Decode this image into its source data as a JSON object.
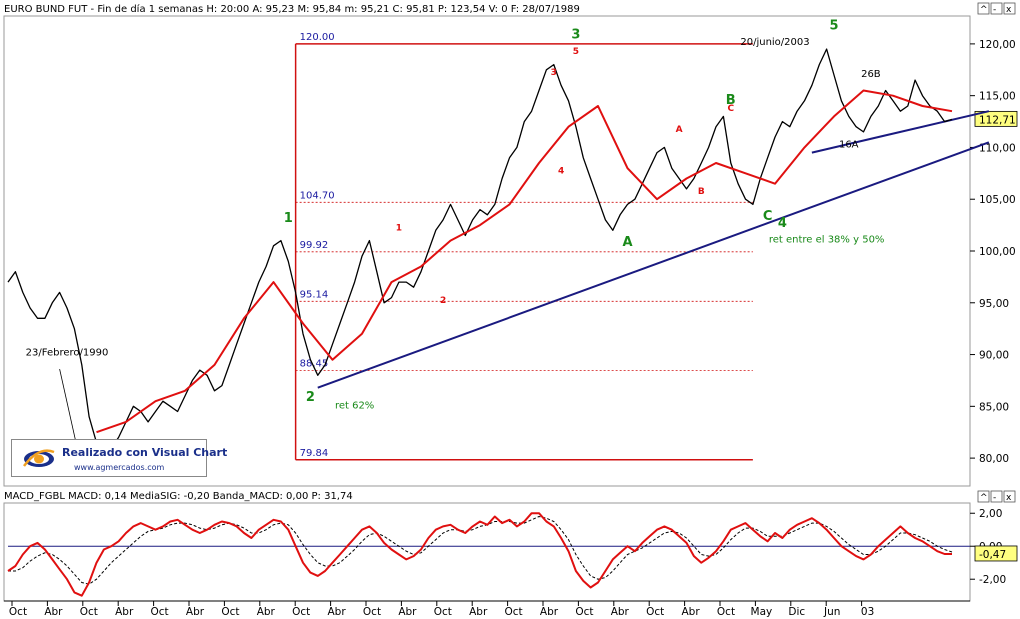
{
  "header": {
    "main": "EURO BUND FUT - Fin de día 1 semanas  H: 20:00  A: 95,23  M: 95,84  m: 95,21  C: 95,81  P: 123,54  V: 0  F: 28/07/1989",
    "macd": "MACD_FGBL  MACD: 0,14  MediaSIG: -0,20  Banda_MACD: 0,00  P: 31,74"
  },
  "window_buttons": {
    "main": [
      "^",
      "-",
      "x"
    ],
    "macd": [
      "^",
      "-",
      "x"
    ]
  },
  "logo": {
    "title": "Realizado con Visual Chart",
    "url": "www.agmercados.com"
  },
  "chart_data": [
    {
      "type": "line",
      "series": [
        {
          "name": "",
          "x": [
            0,
            1,
            2,
            3,
            4,
            5,
            6,
            7,
            8,
            9,
            10,
            11,
            12,
            13,
            14,
            15,
            16,
            17,
            18,
            19,
            20,
            21,
            22,
            23,
            24,
            25,
            26,
            27,
            28,
            29,
            30,
            31,
            32,
            33,
            34,
            35,
            36,
            37,
            38,
            39,
            40,
            41,
            42,
            43,
            44,
            45,
            46,
            47,
            48,
            49,
            50,
            51,
            52,
            53,
            54,
            55,
            56,
            57,
            58,
            59,
            60,
            61,
            62,
            63,
            64,
            65,
            66,
            67,
            68,
            69,
            70,
            71,
            72,
            73,
            74,
            75,
            76,
            77,
            78,
            79,
            80,
            81,
            82,
            83,
            84,
            85,
            86,
            87,
            88,
            89,
            90,
            91,
            92,
            93,
            94,
            95,
            96,
            97,
            98,
            99,
            100,
            101,
            102,
            103,
            104,
            105,
            106,
            107,
            108,
            109,
            110,
            111,
            112,
            113,
            114,
            115,
            116,
            117,
            118,
            119,
            120,
            121,
            122,
            123,
            124,
            125,
            126,
            127,
            128
          ],
          "values": [
            97,
            98,
            96,
            94.5,
            93.5,
            93.5,
            95,
            96,
            94.5,
            92.5,
            89,
            84,
            81.5,
            80.5,
            81,
            82,
            83.5,
            85,
            84.5,
            83.5,
            84.5,
            85.5,
            85,
            84.5,
            86,
            87.5,
            88.5,
            88,
            86.5,
            87,
            89,
            91,
            93,
            95,
            97,
            98.5,
            100.5,
            101,
            99,
            96,
            92,
            89.5,
            88,
            89,
            91,
            93,
            95,
            97,
            99.5,
            101,
            98,
            95,
            95.5,
            97,
            97,
            96.5,
            98,
            100,
            102,
            103,
            104.5,
            103,
            101.5,
            103,
            104,
            103.5,
            104.5,
            107,
            109,
            110,
            112.5,
            113.5,
            115.5,
            117.5,
            118,
            116,
            114.5,
            112,
            109,
            107,
            105,
            103,
            102,
            103.5,
            104.5,
            105,
            106.5,
            108,
            109.5,
            110,
            108,
            107,
            106,
            107,
            108.5,
            110,
            112,
            113,
            108.5,
            106.5,
            105,
            104.5,
            107,
            109,
            111,
            112.5,
            112,
            113.5,
            114.5,
            116,
            118,
            119.5,
            117,
            114.5,
            113,
            112,
            111.5,
            113,
            114,
            115.5,
            114.5,
            113.5,
            114,
            116.5,
            115,
            114,
            113.5,
            112.5,
            112.71
          ]
        },
        {
          "name": "",
          "x": [
            12,
            16,
            20,
            24,
            28,
            32,
            36,
            40,
            44,
            48,
            52,
            56,
            60,
            64,
            68,
            72,
            76,
            80,
            84,
            88,
            92,
            96,
            100,
            104,
            108,
            112,
            116,
            120,
            124,
            128
          ],
          "values": [
            82.5,
            83.5,
            85.5,
            86.5,
            89,
            93.5,
            97,
            93,
            89.5,
            92,
            97,
            98.5,
            101,
            102.5,
            104.5,
            108.5,
            112,
            114,
            108,
            105,
            107,
            108.5,
            107.5,
            106.5,
            110,
            113,
            115.5,
            115,
            114,
            113.5
          ]
        }
      ],
      "ylim": [
        77.5,
        122.5
      ],
      "yticks": [
        "120,00",
        "115,00",
        "110,00",
        "105,00",
        "100,00",
        "95,00",
        "90,00",
        "85,00",
        "80,00"
      ],
      "last_value_label": "112,71",
      "fibonacci_levels": [
        "120.00",
        "104.70",
        "99.92",
        "95.14",
        "88.45",
        "79.84"
      ],
      "wave_labels_primary": [
        "1",
        "2",
        "3",
        "4",
        "5",
        "A",
        "B",
        "C"
      ],
      "wave_labels_secondary": [
        "1",
        "2",
        "3",
        "4",
        "5",
        "A",
        "B",
        "C",
        "26B",
        "16A"
      ],
      "annotations": [
        "ret 62%",
        "ret entre el 38% y 50%",
        "20/junio/2003",
        "23/Febrero/1990"
      ]
    },
    {
      "type": "line",
      "series": [
        {
          "name": "MACD",
          "x": [
            0,
            1,
            2,
            3,
            4,
            5,
            6,
            7,
            8,
            9,
            10,
            11,
            12,
            13,
            14,
            15,
            16,
            17,
            18,
            19,
            20,
            21,
            22,
            23,
            24,
            25,
            26,
            27,
            28,
            29,
            30,
            31,
            32,
            33,
            34,
            35,
            36,
            37,
            38,
            39,
            40,
            41,
            42,
            43,
            44,
            45,
            46,
            47,
            48,
            49,
            50,
            51,
            52,
            53,
            54,
            55,
            56,
            57,
            58,
            59,
            60,
            61,
            62,
            63,
            64,
            65,
            66,
            67,
            68,
            69,
            70,
            71,
            72,
            73,
            74,
            75,
            76,
            77,
            78,
            79,
            80,
            81,
            82,
            83,
            84,
            85,
            86,
            87,
            88,
            89,
            90,
            91,
            92,
            93,
            94,
            95,
            96,
            97,
            98,
            99,
            100,
            101,
            102,
            103,
            104,
            105,
            106,
            107,
            108,
            109,
            110,
            111,
            112,
            113,
            114,
            115,
            116,
            117,
            118,
            119,
            120,
            121,
            122,
            123,
            124,
            125,
            126,
            127,
            128
          ],
          "values": [
            -1.5,
            -1.2,
            -0.5,
            0,
            0.2,
            -0.2,
            -0.8,
            -1.4,
            -2,
            -2.8,
            -3,
            -2.2,
            -1,
            -0.2,
            0,
            0.3,
            0.8,
            1.2,
            1.4,
            1.2,
            1,
            1.2,
            1.5,
            1.6,
            1.3,
            1,
            0.8,
            1,
            1.3,
            1.5,
            1.4,
            1.2,
            0.8,
            0.5,
            1,
            1.3,
            1.6,
            1.5,
            1,
            0,
            -1,
            -1.6,
            -1.8,
            -1.5,
            -1,
            -0.5,
            0,
            0.5,
            1,
            1.2,
            0.8,
            0.2,
            -0.2,
            -0.5,
            -0.8,
            -0.6,
            -0.2,
            0.5,
            1,
            1.2,
            1.3,
            1,
            0.8,
            1.2,
            1.5,
            1.3,
            1.8,
            1.4,
            1.6,
            1.2,
            1.5,
            2,
            2,
            1.5,
            1.2,
            0.5,
            -0.3,
            -1.5,
            -2.1,
            -2.5,
            -2.2,
            -1.5,
            -0.8,
            -0.4,
            0,
            -0.3,
            0.2,
            0.6,
            1,
            1.2,
            1,
            0.6,
            0.2,
            -0.6,
            -1,
            -0.7,
            -0.3,
            0.3,
            1,
            1.2,
            1.4,
            1,
            0.6,
            0.3,
            0.8,
            0.5,
            1,
            1.3,
            1.5,
            1.7,
            1.4,
            1,
            0.5,
            0,
            -0.3,
            -0.6,
            -0.8,
            -0.5,
            0,
            0.4,
            0.8,
            1.2,
            0.8,
            0.5,
            0.3,
            0,
            -0.3,
            -0.47,
            -0.47
          ]
        },
        {
          "name": "MediaSIG",
          "x": [
            0,
            1,
            2,
            3,
            4,
            5,
            6,
            7,
            8,
            9,
            10,
            11,
            12,
            13,
            14,
            15,
            16,
            17,
            18,
            19,
            20,
            21,
            22,
            23,
            24,
            25,
            26,
            27,
            28,
            29,
            30,
            31,
            32,
            33,
            34,
            35,
            36,
            37,
            38,
            39,
            40,
            41,
            42,
            43,
            44,
            45,
            46,
            47,
            48,
            49,
            50,
            51,
            52,
            53,
            54,
            55,
            56,
            57,
            58,
            59,
            60,
            61,
            62,
            63,
            64,
            65,
            66,
            67,
            68,
            69,
            70,
            71,
            72,
            73,
            74,
            75,
            76,
            77,
            78,
            79,
            80,
            81,
            82,
            83,
            84,
            85,
            86,
            87,
            88,
            89,
            90,
            91,
            92,
            93,
            94,
            95,
            96,
            97,
            98,
            99,
            100,
            101,
            102,
            103,
            104,
            105,
            106,
            107,
            108,
            109,
            110,
            111,
            112,
            113,
            114,
            115,
            116,
            117,
            118,
            119,
            120,
            121,
            122,
            123,
            124,
            125,
            126,
            127,
            128
          ],
          "values": [
            -1.5,
            -1.5,
            -1.3,
            -0.9,
            -0.6,
            -0.4,
            -0.5,
            -0.8,
            -1.2,
            -1.7,
            -2.2,
            -2.3,
            -2,
            -1.5,
            -1,
            -0.6,
            -0.2,
            0.2,
            0.6,
            0.9,
            1,
            1.1,
            1.3,
            1.4,
            1.4,
            1.3,
            1.1,
            1,
            1.1,
            1.3,
            1.4,
            1.3,
            1.1,
            0.8,
            0.8,
            1,
            1.3,
            1.4,
            1.3,
            0.8,
            0.1,
            -0.5,
            -1,
            -1.2,
            -1.2,
            -1,
            -0.6,
            -0.2,
            0.3,
            0.7,
            0.8,
            0.6,
            0.3,
            0,
            -0.3,
            -0.5,
            -0.4,
            0,
            0.4,
            0.8,
            1,
            1,
            0.9,
            1,
            1.2,
            1.3,
            1.5,
            1.5,
            1.5,
            1.4,
            1.4,
            1.6,
            1.8,
            1.7,
            1.5,
            1,
            0.4,
            -0.5,
            -1.2,
            -1.8,
            -2,
            -1.9,
            -1.5,
            -1,
            -0.5,
            -0.3,
            -0.1,
            0.2,
            0.5,
            0.8,
            0.9,
            0.8,
            0.5,
            0,
            -0.5,
            -0.6,
            -0.5,
            -0.1,
            0.4,
            0.8,
            1.1,
            1.1,
            0.9,
            0.6,
            0.6,
            0.6,
            0.8,
            1,
            1.2,
            1.4,
            1.4,
            1.2,
            0.9,
            0.5,
            0.1,
            -0.2,
            -0.5,
            -0.5,
            -0.3,
            0,
            0.4,
            0.8,
            0.8,
            0.7,
            0.5,
            0.3,
            0,
            -0.2,
            -0.35
          ]
        }
      ],
      "ylim": [
        -3.2,
        2.5
      ],
      "yticks": [
        "2,00",
        "0,00",
        "-2,00"
      ],
      "last_value_label": "-0,47",
      "zero_line": true
    }
  ],
  "x_axis": {
    "labels": [
      "Oct",
      "Abr",
      "Oct",
      "Abr",
      "Oct",
      "Abr",
      "Oct",
      "Abr",
      "Oct",
      "Abr",
      "Oct",
      "Abr",
      "Oct",
      "Abr",
      "Oct",
      "Abr",
      "Oct",
      "Abr",
      "Oct",
      "Abr",
      "Oct",
      "May",
      "Dic",
      "Jun",
      "03"
    ]
  },
  "colors": {
    "price": "#000000",
    "moving_average": "#e01010",
    "trendline": "#1a1a80",
    "fib_line": "#d01010",
    "fib_text": "#1a1aa0",
    "wave_primary": "#1a8a1a",
    "wave_secondary": "#e01010",
    "macd": "#e01010",
    "signal": "#000000",
    "zero_line": "#1a1a80",
    "last_value_box": "#ffff80"
  }
}
